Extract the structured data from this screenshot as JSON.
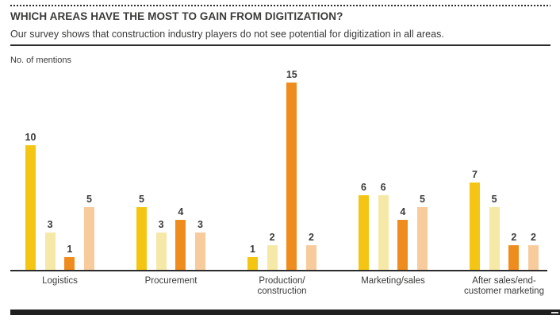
{
  "header": {
    "title": "WHICH AREAS HAVE THE MOST TO GAIN FROM DIGITIZATION?",
    "subtitle": "Our survey shows that construction industry players do not see potential for digitization in all areas."
  },
  "chart_data": {
    "type": "bar",
    "title": "WHICH AREAS HAVE THE MOST TO GAIN FROM DIGITIZATION?",
    "subtitle": "Our survey shows that construction industry players do not see potential for digitization in all areas.",
    "xlabel": "",
    "ylabel": "No. of mentions",
    "ylim": [
      0,
      15
    ],
    "grid": false,
    "legend_position": "none",
    "value_labels_shown": true,
    "categories": [
      "Logistics",
      "Procurement",
      "Production/\nconstruction",
      "Marketing/sales",
      "After sales/end-\ncustomer marketing"
    ],
    "series": [
      {
        "name": "yellow",
        "color": "#F4C613",
        "values": [
          10,
          5,
          1,
          6,
          7
        ]
      },
      {
        "name": "cream",
        "color": "#F6E8A6",
        "values": [
          3,
          3,
          2,
          6,
          5
        ]
      },
      {
        "name": "orange",
        "color": "#EF8C1E",
        "values": [
          1,
          4,
          15,
          4,
          2
        ]
      },
      {
        "name": "peach",
        "color": "#F7CB9C",
        "values": [
          5,
          3,
          2,
          5,
          2
        ]
      }
    ],
    "accent_colors": {
      "rule_black": "#1f1f1f",
      "text": "#3a3a39"
    }
  }
}
